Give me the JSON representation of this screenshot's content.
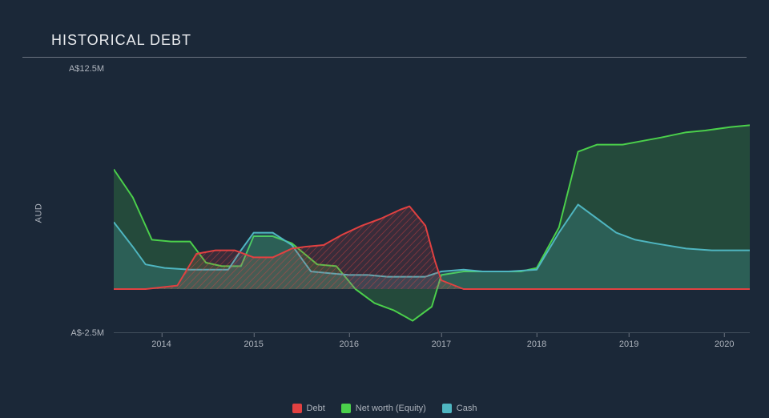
{
  "title": "HISTORICAL DEBT",
  "chart": {
    "type": "area",
    "background_color": "#1b2838",
    "title_color": "#eaecef",
    "title_fontsize": 18,
    "axis_label_color": "#aeb4bd",
    "axis_label_fontsize": 11,
    "axis_line_color": "#6a7380",
    "y_title": "AUD",
    "ylim": [
      -2.5,
      12.5
    ],
    "y_ticks": [
      {
        "value": 12.5,
        "label": "A$12.5M"
      },
      {
        "value": -2.5,
        "label": "A$-2.5M"
      }
    ],
    "x_ticks": [
      {
        "x": 0.075,
        "label": "2014"
      },
      {
        "x": 0.22,
        "label": "2015"
      },
      {
        "x": 0.37,
        "label": "2016"
      },
      {
        "x": 0.515,
        "label": "2017"
      },
      {
        "x": 0.665,
        "label": "2018"
      },
      {
        "x": 0.81,
        "label": "2019"
      },
      {
        "x": 0.96,
        "label": "2020"
      }
    ],
    "baseline_value": 0,
    "series": [
      {
        "name": "Net worth (Equity)",
        "stroke": "#4bd04b",
        "stroke_width": 2,
        "fill": "rgba(75,208,75,0.20)",
        "points": [
          [
            0.0,
            6.8
          ],
          [
            0.03,
            5.2
          ],
          [
            0.06,
            2.8
          ],
          [
            0.09,
            2.7
          ],
          [
            0.12,
            2.7
          ],
          [
            0.145,
            1.5
          ],
          [
            0.17,
            1.3
          ],
          [
            0.2,
            1.3
          ],
          [
            0.22,
            3.0
          ],
          [
            0.25,
            3.0
          ],
          [
            0.28,
            2.6
          ],
          [
            0.32,
            1.4
          ],
          [
            0.35,
            1.3
          ],
          [
            0.38,
            0.0
          ],
          [
            0.41,
            -0.8
          ],
          [
            0.44,
            -1.2
          ],
          [
            0.47,
            -1.8
          ],
          [
            0.5,
            -1.0
          ],
          [
            0.515,
            0.8
          ],
          [
            0.55,
            1.0
          ],
          [
            0.6,
            1.0
          ],
          [
            0.64,
            1.0
          ],
          [
            0.665,
            1.2
          ],
          [
            0.7,
            3.5
          ],
          [
            0.73,
            7.8
          ],
          [
            0.76,
            8.2
          ],
          [
            0.8,
            8.2
          ],
          [
            0.83,
            8.4
          ],
          [
            0.86,
            8.6
          ],
          [
            0.9,
            8.9
          ],
          [
            0.93,
            9.0
          ],
          [
            0.97,
            9.2
          ],
          [
            1.0,
            9.3
          ]
        ]
      },
      {
        "name": "Cash",
        "stroke": "#4fb6c1",
        "stroke_width": 2,
        "fill": "rgba(79,182,193,0.20)",
        "points": [
          [
            0.0,
            3.8
          ],
          [
            0.03,
            2.4
          ],
          [
            0.05,
            1.4
          ],
          [
            0.08,
            1.2
          ],
          [
            0.12,
            1.1
          ],
          [
            0.15,
            1.1
          ],
          [
            0.18,
            1.1
          ],
          [
            0.2,
            2.2
          ],
          [
            0.22,
            3.2
          ],
          [
            0.25,
            3.2
          ],
          [
            0.28,
            2.5
          ],
          [
            0.31,
            1.0
          ],
          [
            0.34,
            0.9
          ],
          [
            0.37,
            0.8
          ],
          [
            0.4,
            0.8
          ],
          [
            0.43,
            0.7
          ],
          [
            0.46,
            0.7
          ],
          [
            0.49,
            0.7
          ],
          [
            0.515,
            1.0
          ],
          [
            0.55,
            1.1
          ],
          [
            0.58,
            1.0
          ],
          [
            0.62,
            1.0
          ],
          [
            0.665,
            1.1
          ],
          [
            0.7,
            3.2
          ],
          [
            0.73,
            4.8
          ],
          [
            0.76,
            4.0
          ],
          [
            0.79,
            3.2
          ],
          [
            0.82,
            2.8
          ],
          [
            0.85,
            2.6
          ],
          [
            0.9,
            2.3
          ],
          [
            0.94,
            2.2
          ],
          [
            0.97,
            2.2
          ],
          [
            1.0,
            2.2
          ]
        ]
      },
      {
        "name": "Debt",
        "stroke": "#e24141",
        "stroke_width": 2,
        "fill": "rgba(226,65,65,0.30)",
        "hatched": true,
        "points": [
          [
            0.0,
            0.0
          ],
          [
            0.05,
            0.0
          ],
          [
            0.1,
            0.2
          ],
          [
            0.13,
            2.0
          ],
          [
            0.16,
            2.2
          ],
          [
            0.19,
            2.2
          ],
          [
            0.22,
            1.8
          ],
          [
            0.25,
            1.8
          ],
          [
            0.28,
            2.3
          ],
          [
            0.3,
            2.4
          ],
          [
            0.33,
            2.5
          ],
          [
            0.36,
            3.1
          ],
          [
            0.39,
            3.6
          ],
          [
            0.42,
            4.0
          ],
          [
            0.45,
            4.5
          ],
          [
            0.465,
            4.7
          ],
          [
            0.49,
            3.6
          ],
          [
            0.505,
            1.6
          ],
          [
            0.515,
            0.5
          ],
          [
            0.55,
            0.0
          ],
          [
            0.6,
            0.0
          ],
          [
            0.665,
            0.0
          ],
          [
            0.73,
            0.0
          ],
          [
            0.8,
            0.0
          ],
          [
            0.87,
            0.0
          ],
          [
            0.94,
            0.0
          ],
          [
            1.0,
            0.0
          ]
        ]
      }
    ],
    "legend": [
      {
        "label": "Debt",
        "color": "#e24141"
      },
      {
        "label": "Net worth (Equity)",
        "color": "#4bd04b"
      },
      {
        "label": "Cash",
        "color": "#4fb6c1"
      }
    ]
  }
}
